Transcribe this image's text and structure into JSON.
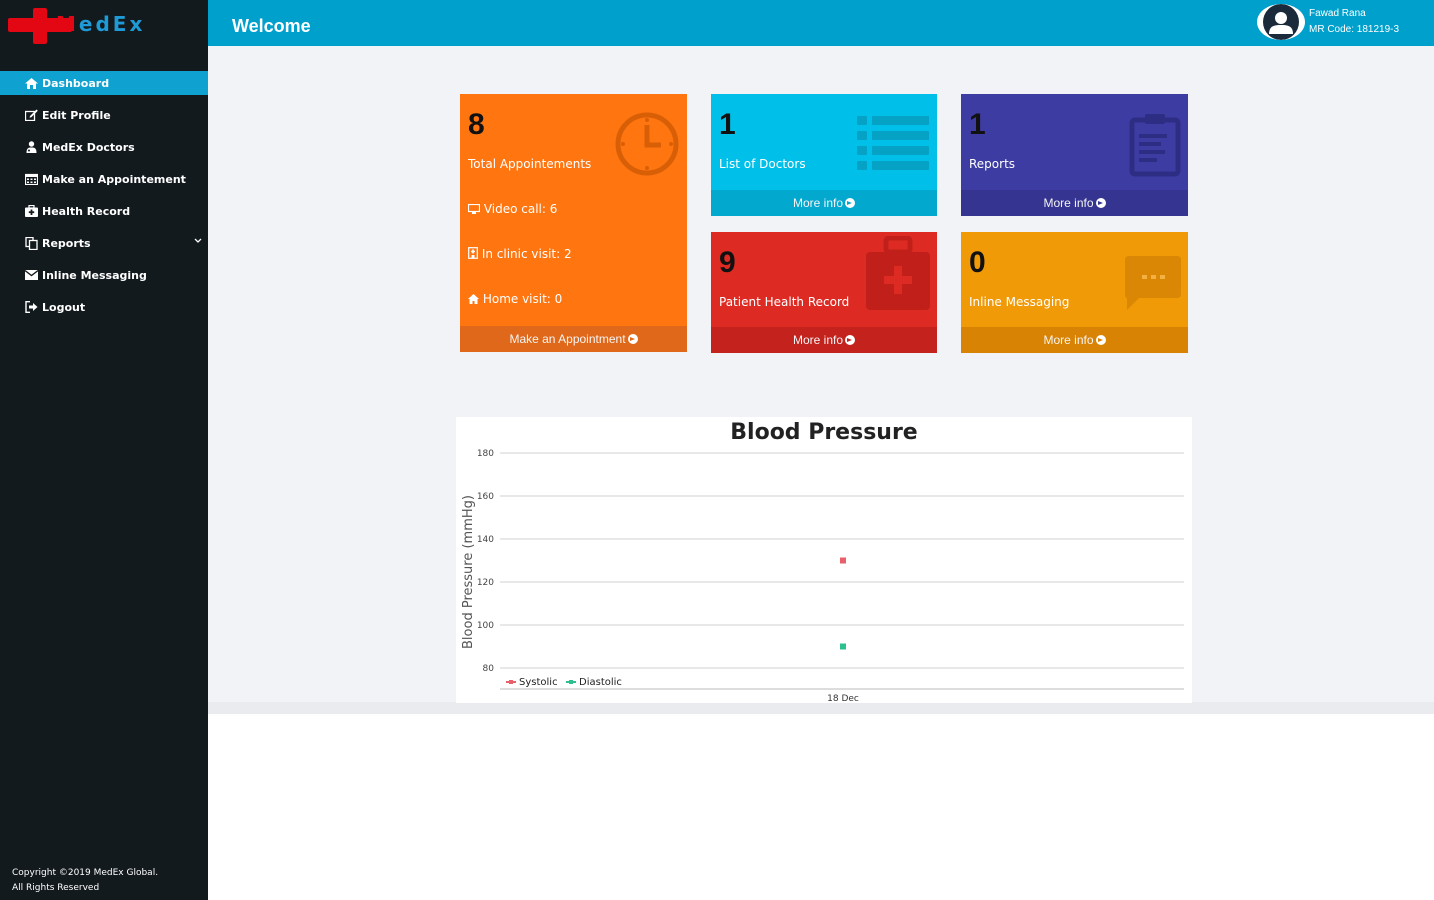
{
  "brand": {
    "logo_text_m": "M",
    "logo_text_rest": "edEx"
  },
  "sidebar": {
    "items": [
      {
        "label": "Dashboard",
        "icon": "home-icon"
      },
      {
        "label": "Edit Profile",
        "icon": "edit-icon"
      },
      {
        "label": "MedEx Doctors",
        "icon": "user-md-icon"
      },
      {
        "label": "Make an Appointement",
        "icon": "calendar-icon"
      },
      {
        "label": "Health Record",
        "icon": "medkit-icon"
      },
      {
        "label": "Reports",
        "icon": "files-icon"
      },
      {
        "label": "Inline Messaging",
        "icon": "envelope-icon"
      },
      {
        "label": "Logout",
        "icon": "sign-out-icon"
      }
    ],
    "copyright_line1": "Copyright ©2019 MedEx Global.",
    "copyright_line2": "All Rights Reserved"
  },
  "header": {
    "title": "Welcome",
    "user_name": "Fawad Rana",
    "mr_code": "MR Code: 181219-3"
  },
  "cards": {
    "appointments": {
      "count": "8",
      "label": "Total Appointements",
      "video": "Video call: 6",
      "clinic": "In clinic visit: 2",
      "home": "Home visit: 0",
      "footer": "Make an Appointment",
      "color": "#ff7510"
    },
    "doctors": {
      "count": "1",
      "label": "List of Doctors",
      "footer": "More info",
      "color": "#00bfe8"
    },
    "reports": {
      "count": "1",
      "label": "Reports",
      "footer": "More info",
      "color": "#3d3ca3"
    },
    "health": {
      "count": "9",
      "label": "Patient Health Record",
      "footer": "More info",
      "color": "#dd2b23"
    },
    "messaging": {
      "count": "0",
      "label": "Inline Messaging",
      "footer": "More info",
      "color": "#f19a07"
    }
  },
  "chart_data": {
    "type": "scatter",
    "title": "Blood Pressure",
    "ylabel": "Blood Pressure (mmHg)",
    "xlabel": "",
    "categories": [
      "18 Dec"
    ],
    "ylim": [
      80,
      180
    ],
    "yticks": [
      80,
      100,
      120,
      140,
      160,
      180
    ],
    "series": [
      {
        "name": "Systolic",
        "values": [
          130
        ],
        "color": "#e8606a"
      },
      {
        "name": "Diastolic",
        "values": [
          90
        ],
        "color": "#2ebf91"
      }
    ],
    "legend": "bottom-left",
    "grid": true
  }
}
